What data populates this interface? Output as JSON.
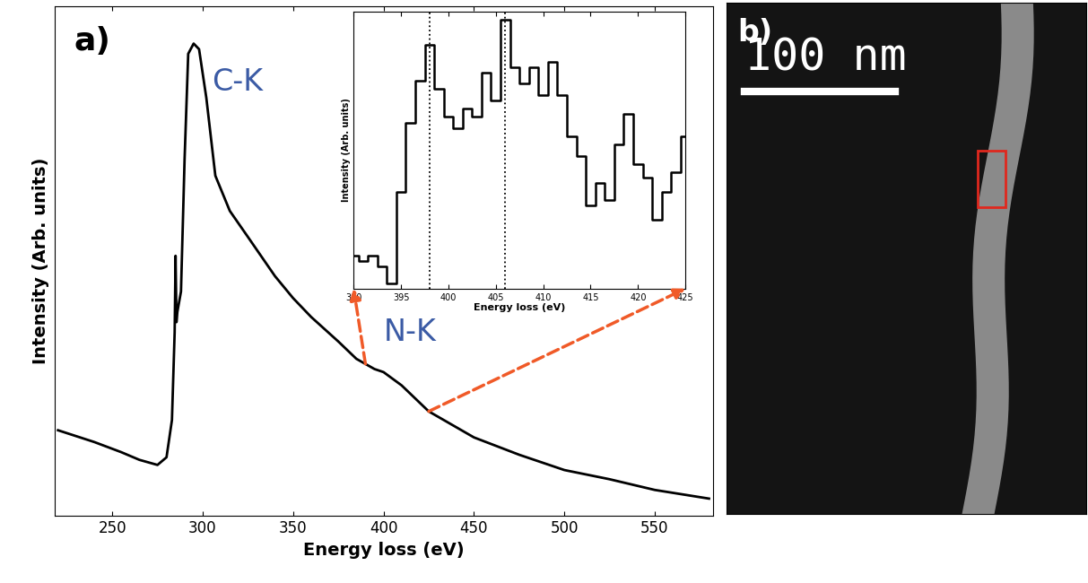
{
  "chart_data": [
    {
      "type": "line",
      "panel_label": "a)",
      "xlabel": "Energy loss (eV)",
      "ylabel": "Intensity (Arb. units)",
      "xlim": [
        218,
        582
      ],
      "xticks": [
        250,
        300,
        350,
        400,
        450,
        500,
        550
      ],
      "ylim": [
        0,
        100
      ],
      "tick_labels": "x",
      "color": "#000000",
      "x": [
        220,
        240,
        255,
        265,
        275,
        280,
        283,
        284.5,
        285,
        285.5,
        286,
        288,
        290,
        292,
        295,
        298,
        302,
        307,
        315,
        325,
        340,
        350,
        360,
        375,
        385,
        395,
        400,
        410,
        425,
        450,
        475,
        500,
        525,
        550,
        580
      ],
      "values": [
        16.8,
        14.5,
        12.5,
        11.0,
        10.0,
        11.5,
        18.8,
        36.0,
        51.0,
        38.0,
        40.0,
        44.0,
        70.0,
        90.6,
        92.6,
        91.5,
        82.0,
        66.7,
        59.8,
        54.7,
        47.0,
        42.7,
        39.0,
        34.2,
        30.8,
        28.8,
        28.2,
        25.6,
        20.5,
        15.4,
        12.0,
        9.0,
        7.2,
        5.1,
        3.4
      ],
      "annotations": [
        {
          "text": "C-K",
          "x": 305,
          "y": 85,
          "color": "#3b5ba5"
        },
        {
          "text": "N-K",
          "x": 400,
          "y": 36,
          "color": "#3b5ba5"
        }
      ],
      "inset": {
        "type": "step",
        "xlabel": "Energy loss (eV)",
        "ylabel": "Intensity (Arb. units)",
        "xlim": [
          390,
          425
        ],
        "xticks": [
          390,
          395,
          400,
          405,
          410,
          415,
          420,
          425
        ],
        "ylim": [
          0,
          100
        ],
        "tick_labels": "x",
        "color": "#000000",
        "reference_lines": [
          398,
          406
        ],
        "x": [
          390,
          391,
          392,
          393,
          394,
          395,
          396,
          397,
          398,
          399,
          400,
          401,
          402,
          403,
          404,
          405,
          406,
          407,
          408,
          409,
          410,
          411,
          412,
          413,
          414,
          415,
          416,
          417,
          418,
          419,
          420,
          421,
          422,
          423,
          424,
          425
        ],
        "values": [
          12,
          10,
          12,
          8,
          2,
          35,
          60,
          75,
          88,
          72,
          62,
          58,
          65,
          62,
          78,
          68,
          97,
          80,
          74,
          80,
          70,
          82,
          70,
          55,
          48,
          30,
          38,
          32,
          52,
          63,
          45,
          40,
          25,
          35,
          42,
          55
        ]
      }
    },
    {
      "type": "image",
      "panel_label": "b)",
      "scale_bar_label": "100 nm"
    }
  ]
}
